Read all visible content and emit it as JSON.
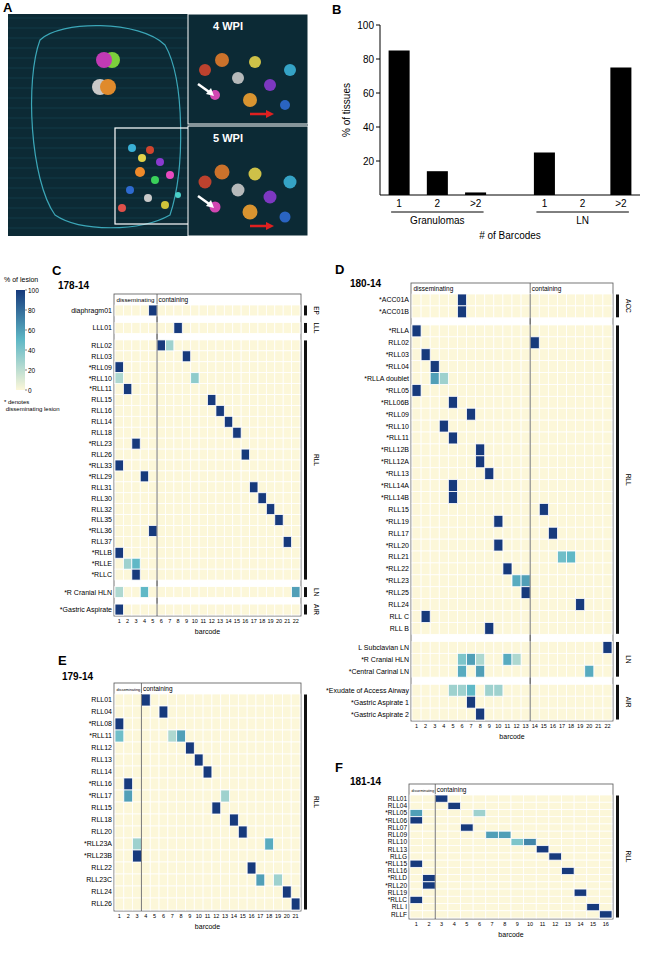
{
  "chart_data": [
    {
      "type": "image",
      "panel": "A",
      "insets": [
        "4 WPI",
        "5 WPI"
      ]
    },
    {
      "type": "bar",
      "panel": "B",
      "categories": [
        "1",
        "2",
        ">2",
        "1",
        "2",
        ">2"
      ],
      "category_groups": [
        {
          "label": "Granulomas",
          "size": 3
        },
        {
          "label": "LN",
          "size": 3
        }
      ],
      "values": [
        85,
        14,
        1.5,
        25,
        0,
        75
      ],
      "color": "#000000",
      "ylim": [
        0,
        100
      ],
      "yticks": [
        20,
        40,
        60,
        80,
        100
      ],
      "grid": false,
      "y_label": "% of tissues",
      "x_label": "# of Barcodes"
    },
    {
      "type": "colorbar",
      "title": "% of lesion",
      "range": [
        0,
        100
      ],
      "ticks": [
        0,
        20,
        40,
        60,
        80,
        100
      ],
      "colors": [
        "#fcf7d9",
        "#5fb8c6",
        "#173a7c"
      ],
      "annotation": "* denotes disseminating lesion"
    },
    {
      "type": "heatmap",
      "panel": "C",
      "title": "178-14",
      "x_label": "barcode",
      "x": [
        1,
        2,
        3,
        4,
        5,
        6,
        7,
        8,
        9,
        10,
        11,
        12,
        13,
        14,
        15,
        16,
        17,
        18,
        19,
        20,
        21,
        22
      ],
      "sections": [
        {
          "label": "disseminating",
          "size": 5
        },
        {
          "label": "containing",
          "size": 17
        }
      ],
      "row_groups": [
        {
          "label": "EP",
          "rows": [
            "diaphragm01"
          ]
        },
        {
          "label": "LLL",
          "rows": [
            "LLL01"
          ]
        },
        {
          "label": "RLL",
          "rows": [
            "RLL02",
            "RLL03",
            "*RLL09",
            "*RLL10",
            "*RLL11",
            "RLL15",
            "RLL16",
            "RLL14",
            "RLL18",
            "*RLL23",
            "RLL26",
            "*RLL33",
            "*RLL29",
            "RLL31",
            "RLL30",
            "RLL32",
            "RLL35",
            "*RLL36",
            "RLL37",
            "*RLLB",
            "*RLLE",
            "*RLLC"
          ]
        },
        {
          "label": "LN",
          "rows": [
            "*R Cranial HLN"
          ]
        },
        {
          "label": "AIR",
          "rows": [
            "*Gastric Aspirate"
          ]
        }
      ],
      "cells": [
        [
          0,
          5,
          100
        ],
        [
          1,
          8,
          100
        ],
        [
          2,
          6,
          100
        ],
        [
          2,
          7,
          30
        ],
        [
          3,
          9,
          100
        ],
        [
          4,
          1,
          100
        ],
        [
          5,
          1,
          25
        ],
        [
          5,
          10,
          35
        ],
        [
          6,
          2,
          100
        ],
        [
          7,
          12,
          100
        ],
        [
          8,
          13,
          100
        ],
        [
          9,
          14,
          100
        ],
        [
          10,
          15,
          100
        ],
        [
          11,
          3,
          100
        ],
        [
          12,
          16,
          100
        ],
        [
          13,
          1,
          100
        ],
        [
          14,
          4,
          100
        ],
        [
          15,
          17,
          100
        ],
        [
          16,
          18,
          100
        ],
        [
          17,
          19,
          100
        ],
        [
          18,
          20,
          100
        ],
        [
          19,
          5,
          100
        ],
        [
          20,
          21,
          100
        ],
        [
          21,
          1,
          100
        ],
        [
          22,
          2,
          30
        ],
        [
          22,
          3,
          50
        ],
        [
          23,
          3,
          100
        ],
        [
          24,
          1,
          25
        ],
        [
          24,
          4,
          50
        ],
        [
          24,
          22,
          60
        ],
        [
          25,
          1,
          100
        ]
      ]
    },
    {
      "type": "heatmap",
      "panel": "D",
      "title": "180-14",
      "x_label": "barcode",
      "x": [
        1,
        2,
        3,
        4,
        5,
        6,
        7,
        8,
        9,
        10,
        11,
        12,
        13,
        14,
        15,
        16,
        17,
        18,
        19,
        20,
        21,
        22
      ],
      "sections": [
        {
          "label": "disseminating",
          "size": 13
        },
        {
          "label": "containing",
          "size": 9
        }
      ],
      "row_groups": [
        {
          "label": "ACC",
          "rows": [
            "*ACC01A",
            "*ACC01B"
          ]
        },
        {
          "label": "RLL",
          "rows": [
            "*RLLA",
            "RLL02",
            "*RLL03",
            "*RLL04",
            "*RLLA doublet",
            "*RLL05",
            "*RLL06B",
            "*RLL09",
            "*RLL10",
            "*RLL11",
            "*RLL12B",
            "*RLL12A",
            "*RLL13",
            "*RLL14A",
            "*RLL14B",
            "RLL15",
            "*RLL19",
            "RLL17",
            "*RLL20",
            "RLL21",
            "*RLL22",
            "*RLL23",
            "*RLL25",
            "RLL24",
            "RLL C",
            "RLL B"
          ]
        },
        {
          "label": "LN",
          "rows": [
            "L Subclavian LN",
            "*R Cranial HLN",
            "*Central Carinal LN"
          ]
        },
        {
          "label": "AIR",
          "rows": [
            "*Exudate of Access Airway",
            "*Gastric Aspirate 1",
            "*Gastric Aspirate 2"
          ]
        }
      ],
      "cells": [
        [
          0,
          6,
          100
        ],
        [
          1,
          6,
          100
        ],
        [
          2,
          1,
          100
        ],
        [
          3,
          14,
          100
        ],
        [
          4,
          2,
          100
        ],
        [
          5,
          3,
          100
        ],
        [
          6,
          3,
          60
        ],
        [
          6,
          4,
          30
        ],
        [
          7,
          1,
          100
        ],
        [
          8,
          5,
          100
        ],
        [
          9,
          7,
          100
        ],
        [
          10,
          4,
          100
        ],
        [
          11,
          5,
          100
        ],
        [
          12,
          8,
          100
        ],
        [
          13,
          8,
          100
        ],
        [
          14,
          9,
          100
        ],
        [
          15,
          5,
          100
        ],
        [
          16,
          5,
          100
        ],
        [
          17,
          15,
          100
        ],
        [
          18,
          10,
          100
        ],
        [
          19,
          16,
          100
        ],
        [
          20,
          10,
          100
        ],
        [
          21,
          17,
          45
        ],
        [
          21,
          18,
          50
        ],
        [
          22,
          11,
          100
        ],
        [
          23,
          12,
          55
        ],
        [
          23,
          13,
          60
        ],
        [
          24,
          13,
          100
        ],
        [
          25,
          19,
          100
        ],
        [
          26,
          2,
          100
        ],
        [
          27,
          9,
          100
        ],
        [
          28,
          22,
          100
        ],
        [
          29,
          6,
          40
        ],
        [
          29,
          7,
          60
        ],
        [
          29,
          8,
          25
        ],
        [
          29,
          11,
          55
        ],
        [
          29,
          12,
          25
        ],
        [
          30,
          6,
          55
        ],
        [
          30,
          8,
          60
        ],
        [
          30,
          20,
          55
        ],
        [
          31,
          5,
          30
        ],
        [
          31,
          6,
          30
        ],
        [
          31,
          7,
          50
        ],
        [
          31,
          9,
          30
        ],
        [
          31,
          10,
          30
        ],
        [
          32,
          7,
          100
        ],
        [
          33,
          8,
          100
        ]
      ]
    },
    {
      "type": "heatmap",
      "panel": "E",
      "title": "179-14",
      "x_label": "barcode",
      "x": [
        1,
        2,
        3,
        4,
        5,
        6,
        7,
        8,
        9,
        10,
        11,
        12,
        13,
        14,
        15,
        16,
        17,
        18,
        19,
        20,
        21
      ],
      "sections": [
        {
          "label": "disseminating",
          "size": 3
        },
        {
          "label": "containing",
          "size": 18
        }
      ],
      "row_groups": [
        {
          "label": "RLL",
          "rows": [
            "RLL01",
            "RLL04",
            "*RLL08",
            "*RLL11",
            "RLL12",
            "RLL13",
            "RLL14",
            "*RLL16",
            "*RLL17",
            "RLL15",
            "RLL18",
            "RLL20",
            "*RLL23A",
            "*RLL23B",
            "RLL22",
            "RLL23C",
            "RLL24",
            "RLL26"
          ]
        }
      ],
      "cells": [
        [
          0,
          4,
          100
        ],
        [
          1,
          6,
          100
        ],
        [
          2,
          1,
          100
        ],
        [
          3,
          1,
          45
        ],
        [
          3,
          7,
          25
        ],
        [
          3,
          8,
          60
        ],
        [
          4,
          9,
          100
        ],
        [
          5,
          10,
          100
        ],
        [
          6,
          11,
          100
        ],
        [
          7,
          2,
          100
        ],
        [
          8,
          2,
          60
        ],
        [
          8,
          13,
          30
        ],
        [
          9,
          12,
          100
        ],
        [
          10,
          14,
          100
        ],
        [
          11,
          15,
          100
        ],
        [
          12,
          3,
          30
        ],
        [
          12,
          18,
          55
        ],
        [
          13,
          3,
          100
        ],
        [
          14,
          16,
          100
        ],
        [
          15,
          17,
          60
        ],
        [
          15,
          19,
          30
        ],
        [
          16,
          20,
          100
        ],
        [
          17,
          21,
          100
        ]
      ]
    },
    {
      "type": "heatmap",
      "panel": "F",
      "title": "181-14",
      "x_label": "barcode",
      "x": [
        1,
        2,
        3,
        4,
        5,
        6,
        7,
        8,
        9,
        10,
        11,
        12,
        13,
        14,
        15,
        16
      ],
      "sections": [
        {
          "label": "disseminating",
          "size": 2
        },
        {
          "label": "containing",
          "size": 14
        }
      ],
      "row_groups": [
        {
          "label": "RLL",
          "rows": [
            "RLL01",
            "RLL04",
            "*RLL05",
            "*RLL06",
            "RLL07",
            "RLL09",
            "RLL10",
            "RLL13",
            "RLLG",
            "*RLL15",
            "RLL16",
            "*RLLD",
            "*RLL20",
            "RLL19",
            "*RLLC",
            "RLL I",
            "RLLF"
          ]
        }
      ],
      "cells": [
        [
          0,
          3,
          100
        ],
        [
          1,
          4,
          100
        ],
        [
          2,
          1,
          60
        ],
        [
          2,
          6,
          30
        ],
        [
          3,
          1,
          100
        ],
        [
          4,
          5,
          100
        ],
        [
          5,
          7,
          60
        ],
        [
          5,
          8,
          60
        ],
        [
          6,
          9,
          40
        ],
        [
          6,
          10,
          70
        ],
        [
          7,
          11,
          100
        ],
        [
          8,
          12,
          100
        ],
        [
          9,
          1,
          100
        ],
        [
          10,
          13,
          100
        ],
        [
          11,
          2,
          100
        ],
        [
          12,
          2,
          100
        ],
        [
          13,
          14,
          100
        ],
        [
          14,
          1,
          100
        ],
        [
          15,
          15,
          100
        ],
        [
          16,
          16,
          100
        ]
      ]
    }
  ]
}
